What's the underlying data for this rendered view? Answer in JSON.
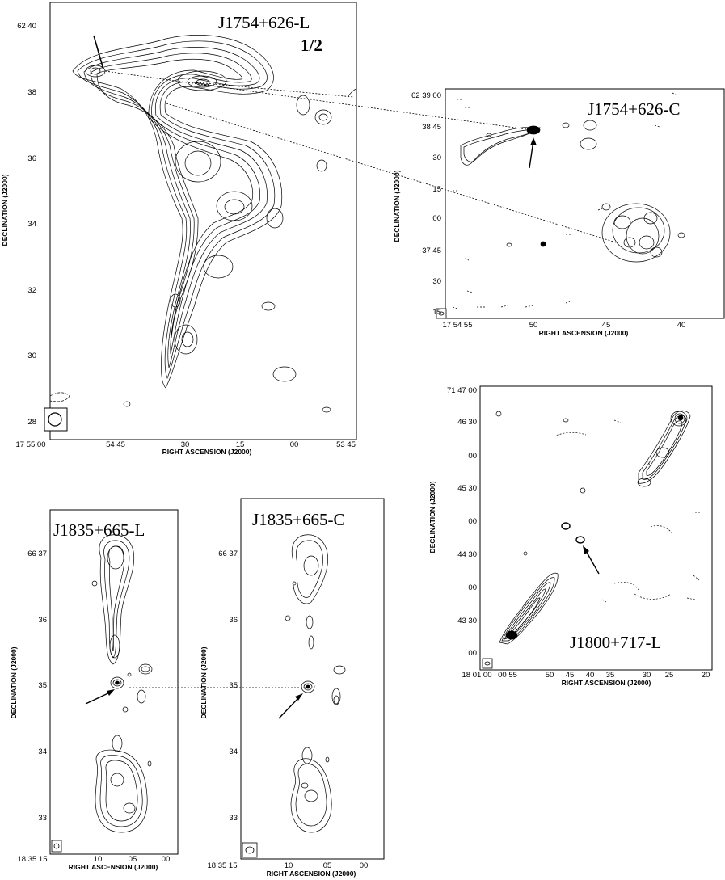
{
  "panels": {
    "p1": {
      "title": "J1754+626-L",
      "subtitle": "1/2",
      "xlabel": "RIGHT ASCENSION (J2000)",
      "ylabel": "DECLINATION (J2000)",
      "xticks": [
        "17 55 00",
        "54 45",
        "30",
        "15",
        "00",
        "53 45"
      ],
      "yticks": [
        "62 40",
        "38",
        "36",
        "34",
        "32",
        "30",
        "28"
      ]
    },
    "p2": {
      "title": "J1754+626-C",
      "xlabel": "RIGHT ASCENSION (J2000)",
      "ylabel": "DECLINATION (J2000)",
      "xticks": [
        "17 54 55",
        "50",
        "45",
        "40"
      ],
      "yticks": [
        "62 39 00",
        "38 45",
        "30",
        "15",
        "00",
        "37 45",
        "30",
        "15"
      ]
    },
    "p3": {
      "title": "J1800+717-L",
      "xlabel": "RIGHT ASCENSION (J2000)",
      "ylabel": "DECLINATION (J2000)",
      "xticks": [
        "18 01 00",
        "00 55",
        "50",
        "45",
        "40",
        "35",
        "30",
        "25",
        "20"
      ],
      "yticks": [
        "71 47 00",
        "46 30",
        "00",
        "45 30",
        "00",
        "44 30",
        "00",
        "43 30",
        "00"
      ]
    },
    "p4": {
      "title": "J1835+665-L",
      "xlabel": "RIGHT ASCENSION (J2000)",
      "ylabel": "DECLINATION (J2000)",
      "xticks": [
        "18 35 15",
        "10",
        "05",
        "00"
      ],
      "yticks": [
        "66 37",
        "36",
        "35",
        "34",
        "33"
      ]
    },
    "p5": {
      "title": "J1835+665-C",
      "xlabel": "RIGHT ASCENSION (J2000)",
      "ylabel": "DECLINATION (J2000)",
      "xticks": [
        "18 35 15",
        "10",
        "05",
        "00"
      ],
      "yticks": [
        "66 37",
        "36",
        "35",
        "34",
        "33"
      ]
    }
  }
}
